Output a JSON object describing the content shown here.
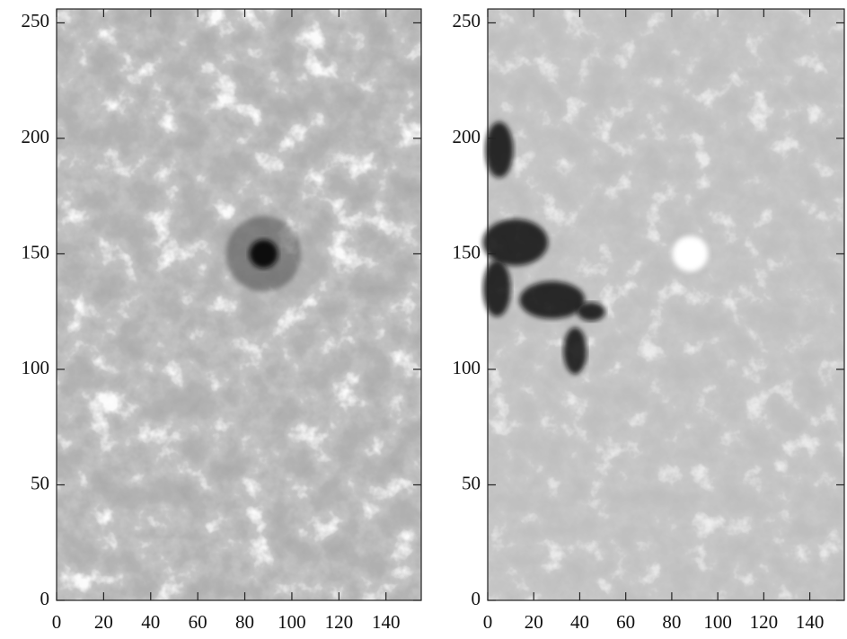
{
  "chart_data": [
    {
      "type": "image",
      "xlim": [
        0,
        155
      ],
      "ylim": [
        0,
        256
      ],
      "xticks": [
        0,
        20,
        40,
        60,
        80,
        100,
        120,
        140
      ],
      "yticks": [
        0,
        50,
        100,
        150,
        200,
        250
      ]
    },
    {
      "type": "image",
      "xlim": [
        0,
        155
      ],
      "ylim": [
        0,
        256
      ],
      "xticks": [
        0,
        20,
        40,
        60,
        80,
        100,
        120,
        140
      ],
      "yticks": [
        0,
        50,
        100,
        150,
        200,
        250
      ]
    }
  ]
}
